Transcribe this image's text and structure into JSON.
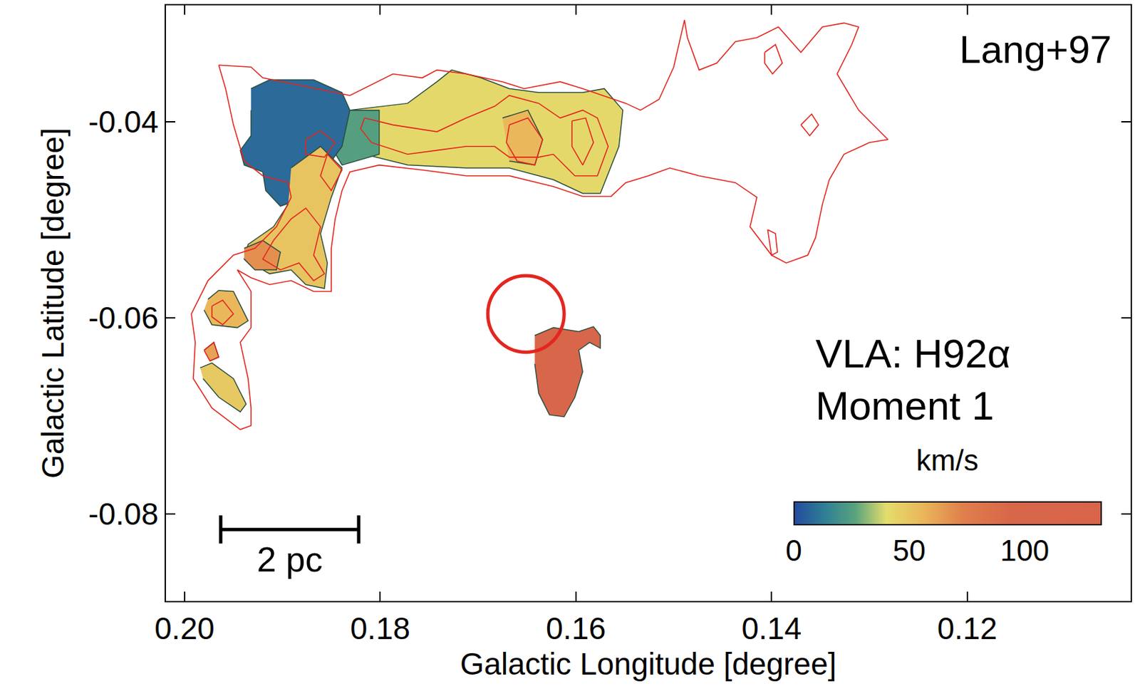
{
  "chart_data": {
    "type": "map",
    "xlabel": "Galactic Longitude [degree]",
    "ylabel": "Galactic Latitude [degree]",
    "xlim": [
      0.2019,
      0.1033
    ],
    "xticks": [
      {
        "value": 0.2,
        "label": "0.20"
      },
      0.18,
      0.16,
      0.14,
      0.12
    ],
    "ylim": [
      -0.0889,
      -0.0281
    ],
    "yticks": [
      -0.08,
      -0.06,
      -0.04
    ],
    "grid": false,
    "reference": "Lang+97",
    "label": [
      "VLA: H92α",
      "Moment 1"
    ],
    "colorbar": {
      "title": "km/s",
      "range": [
        0,
        133
      ],
      "ticks": [
        0,
        50,
        100
      ]
    },
    "regions": [
      {
        "velocity": 42,
        "l": [
          0.1831,
          0.1772,
          0.1742,
          0.1727,
          0.1697,
          0.1668,
          0.1638,
          0.1593,
          0.1571,
          0.1552,
          0.1556,
          0.1575,
          0.1593,
          0.1623,
          0.1668,
          0.1712,
          0.1772,
          0.1816,
          0.1839
        ],
        "b": [
          -0.0388,
          -0.0381,
          -0.0359,
          -0.0347,
          -0.0355,
          -0.0366,
          -0.037,
          -0.037,
          -0.0366,
          -0.0388,
          -0.0425,
          -0.0473,
          -0.0473,
          -0.0459,
          -0.0447,
          -0.0447,
          -0.0444,
          -0.0433,
          -0.044
        ]
      },
      {
        "velocity": 55,
        "l": [
          0.1675,
          0.1649,
          0.1634,
          0.1642,
          0.1668
        ],
        "b": [
          -0.0396,
          -0.0388,
          -0.0418,
          -0.0444,
          -0.044
        ]
      },
      {
        "velocity": 25,
        "l": [
          0.1846,
          0.1801,
          0.1801,
          0.1839,
          0.185
        ],
        "b": [
          -0.0388,
          -0.0388,
          -0.0433,
          -0.0444,
          -0.0425
        ]
      },
      {
        "velocity": 8,
        "l": [
          0.1932,
          0.1913,
          0.1868,
          0.1839,
          0.1831,
          0.1839,
          0.1861,
          0.1876,
          0.1902,
          0.1917,
          0.192,
          0.1939,
          0.1943,
          0.1932,
          0.1932
        ],
        "b": [
          -0.0366,
          -0.0357,
          -0.0357,
          -0.037,
          -0.0388,
          -0.0425,
          -0.0455,
          -0.0477,
          -0.0486,
          -0.047,
          -0.0451,
          -0.0444,
          -0.0429,
          -0.0414,
          -0.0388
        ]
      },
      {
        "velocity": 50,
        "l": [
          0.1891,
          0.1861,
          0.1839,
          0.185,
          0.1861,
          0.1854,
          0.1857,
          0.1876,
          0.1891,
          0.1913,
          0.1939,
          0.1935,
          0.1909,
          0.1894
        ],
        "b": [
          -0.0447,
          -0.0425,
          -0.0447,
          -0.0477,
          -0.0514,
          -0.0544,
          -0.057,
          -0.0566,
          -0.0551,
          -0.0555,
          -0.054,
          -0.0525,
          -0.0507,
          -0.0484
        ]
      },
      {
        "velocity": 68,
        "l": [
          0.1939,
          0.192,
          0.1902,
          0.1906,
          0.1928,
          0.1939
        ],
        "b": [
          -0.0529,
          -0.0521,
          -0.0533,
          -0.0551,
          -0.0551,
          -0.054
        ]
      },
      {
        "velocity": 55,
        "l": [
          0.1976,
          0.1965,
          0.195,
          0.1935,
          0.1946,
          0.1972,
          0.198
        ],
        "b": [
          -0.0581,
          -0.0572,
          -0.0573,
          -0.0603,
          -0.061,
          -0.0607,
          -0.0592
        ]
      },
      {
        "velocity": 62,
        "l": [
          0.198,
          0.197,
          0.1965,
          0.1974
        ],
        "b": [
          -0.0633,
          -0.0625,
          -0.064,
          -0.0644
        ]
      },
      {
        "velocity": 48,
        "l": [
          0.1984,
          0.1972,
          0.195,
          0.1937,
          0.1943,
          0.1965,
          0.1981
        ],
        "b": [
          -0.0651,
          -0.0646,
          -0.0662,
          -0.0688,
          -0.0696,
          -0.0681,
          -0.0662
        ]
      },
      {
        "velocity": 112,
        "l": [
          0.1642,
          0.1623,
          0.1597,
          0.1582,
          0.1575,
          0.1575,
          0.1586,
          0.1597,
          0.1593,
          0.1601,
          0.1612,
          0.1627,
          0.1638,
          0.1642
        ],
        "b": [
          -0.0618,
          -0.061,
          -0.0614,
          -0.0609,
          -0.0618,
          -0.0631,
          -0.0625,
          -0.0633,
          -0.0655,
          -0.0681,
          -0.0701,
          -0.0699,
          -0.0677,
          -0.0647
        ]
      }
    ],
    "contours": {
      "color": "#e3261f",
      "lines": [
        {
          "l": [
            0.1965,
            0.1932,
            0.192,
            0.1831,
            0.1787,
            0.1757,
            0.1742,
            0.1712,
            0.1675,
            0.1653,
            0.1616,
            0.1593,
            0.1549,
            0.1534,
            0.1515,
            0.15,
            0.1489,
            0.1486,
            0.1474,
            0.1456,
            0.1437,
            0.1415,
            0.1393,
            0.137,
            0.1348,
            0.1326,
            0.1311,
            0.1318,
            0.1333,
            0.1311,
            0.1281,
            0.13,
            0.1326,
            0.1341,
            0.1348,
            0.1355,
            0.1363,
            0.1385,
            0.14,
            0.1422,
            0.1415,
            0.1437,
            0.1474,
            0.1504,
            0.1526,
            0.1549,
            0.1564,
            0.1593,
            0.1623,
            0.1668,
            0.1712,
            0.1757,
            0.1801,
            0.1831,
            0.1839,
            0.1846,
            0.185,
            0.185,
            0.1868,
            0.1891,
            0.1913,
            0.1932,
            0.1946,
            0.1932,
            0.1932,
            0.1943,
            0.1935,
            0.1932,
            0.1932,
            0.1943,
            0.1972,
            0.1991,
            0.1989,
            0.1993,
            0.1976,
            0.195,
            0.1928,
            0.1906,
            0.1891,
            0.1894,
            0.192,
            0.1939,
            0.195,
            0.1958
          ],
          "b": [
            -0.0342,
            -0.0344,
            -0.0355,
            -0.0373,
            -0.0351,
            -0.0355,
            -0.0347,
            -0.0351,
            -0.0359,
            -0.0366,
            -0.0359,
            -0.0366,
            -0.0381,
            -0.0388,
            -0.0377,
            -0.0344,
            -0.0296,
            -0.0314,
            -0.0347,
            -0.034,
            -0.0318,
            -0.0314,
            -0.0303,
            -0.0329,
            -0.0303,
            -0.0299,
            -0.0303,
            -0.0321,
            -0.0351,
            -0.0388,
            -0.0418,
            -0.0421,
            -0.0433,
            -0.0459,
            -0.0484,
            -0.0518,
            -0.0536,
            -0.0544,
            -0.0536,
            -0.0507,
            -0.0477,
            -0.0462,
            -0.0455,
            -0.0447,
            -0.0455,
            -0.0462,
            -0.0476,
            -0.0476,
            -0.0466,
            -0.0455,
            -0.0455,
            -0.0449,
            -0.0444,
            -0.0451,
            -0.047,
            -0.0499,
            -0.0529,
            -0.0573,
            -0.0573,
            -0.0562,
            -0.0566,
            -0.0559,
            -0.0551,
            -0.0573,
            -0.061,
            -0.0625,
            -0.0662,
            -0.0692,
            -0.071,
            -0.0714,
            -0.0692,
            -0.0662,
            -0.0625,
            -0.0596,
            -0.0562,
            -0.0536,
            -0.0529,
            -0.0507,
            -0.0477,
            -0.0462,
            -0.0455,
            -0.044,
            -0.0403,
            -0.0366
          ]
        },
        {
          "l": [
            0.1876,
            0.1861,
            0.1846,
            0.1857,
            0.1876
          ],
          "b": [
            -0.0418,
            -0.0409,
            -0.0421,
            -0.0436,
            -0.0433
          ]
        },
        {
          "l": [
            0.1854,
            0.1839,
            0.185,
            0.1861
          ],
          "b": [
            -0.0433,
            -0.0449,
            -0.047,
            -0.0455
          ]
        },
        {
          "l": [
            0.1816,
            0.1787,
            0.1742,
            0.1712,
            0.1683,
            0.1668,
            0.1638,
            0.1616,
            0.1593,
            0.1578,
            0.1567,
            0.1578,
            0.1601,
            0.1623,
            0.1638,
            0.1668,
            0.1683,
            0.1712,
            0.1742,
            0.1772,
            0.1809,
            0.182
          ],
          "b": [
            -0.0396,
            -0.0403,
            -0.041,
            -0.0396,
            -0.0384,
            -0.0373,
            -0.0381,
            -0.0396,
            -0.0388,
            -0.0396,
            -0.0425,
            -0.0455,
            -0.0455,
            -0.0433,
            -0.0436,
            -0.0436,
            -0.0425,
            -0.0425,
            -0.0429,
            -0.0433,
            -0.0421,
            -0.0407
          ]
        },
        {
          "l": [
            0.1668,
            0.1649,
            0.1634,
            0.1642,
            0.166,
            0.1671
          ],
          "b": [
            -0.0403,
            -0.0396,
            -0.0418,
            -0.0444,
            -0.044,
            -0.0421
          ]
        },
        {
          "l": [
            0.1604,
            0.159,
            0.1582,
            0.1593,
            0.1604
          ],
          "b": [
            -0.0399,
            -0.0396,
            -0.0421,
            -0.0444,
            -0.0425
          ]
        },
        {
          "l": [
            0.1891,
            0.1876,
            0.1861,
            0.1868,
            0.1857,
            0.1868,
            0.1883,
            0.1902,
            0.192,
            0.1909
          ],
          "b": [
            -0.0499,
            -0.0488,
            -0.0507,
            -0.0536,
            -0.0555,
            -0.0562,
            -0.0544,
            -0.0551,
            -0.054,
            -0.0521
          ]
        },
        {
          "l": [
            0.1972,
            0.1961,
            0.195,
            0.1961,
            0.1972
          ],
          "b": [
            -0.0588,
            -0.0582,
            -0.0596,
            -0.0607,
            -0.0599
          ]
        },
        {
          "l": [
            0.198,
            0.197,
            0.1965,
            0.1974
          ],
          "b": [
            -0.0633,
            -0.0625,
            -0.064,
            -0.0644
          ]
        },
        {
          "l": [
            0.1407,
            0.1396,
            0.1389,
            0.1399,
            0.1407
          ],
          "b": [
            -0.0329,
            -0.0321,
            -0.034,
            -0.0351,
            -0.034
          ]
        },
        {
          "l": [
            0.137,
            0.1359,
            0.1352,
            0.1361
          ],
          "b": [
            -0.0403,
            -0.0392,
            -0.0403,
            -0.0414
          ]
        },
        {
          "l": [
            0.1404,
            0.1396,
            0.1394,
            0.14
          ],
          "b": [
            -0.051,
            -0.0514,
            -0.0533,
            -0.0536
          ]
        }
      ]
    },
    "circle": {
      "l": 0.1651,
      "b": -0.0596,
      "r": 0.0039,
      "color": "#e3261f"
    },
    "scale_bar": {
      "l": [
        0.1963,
        0.1822
      ],
      "b": -0.0816,
      "label": "2 pc"
    }
  }
}
